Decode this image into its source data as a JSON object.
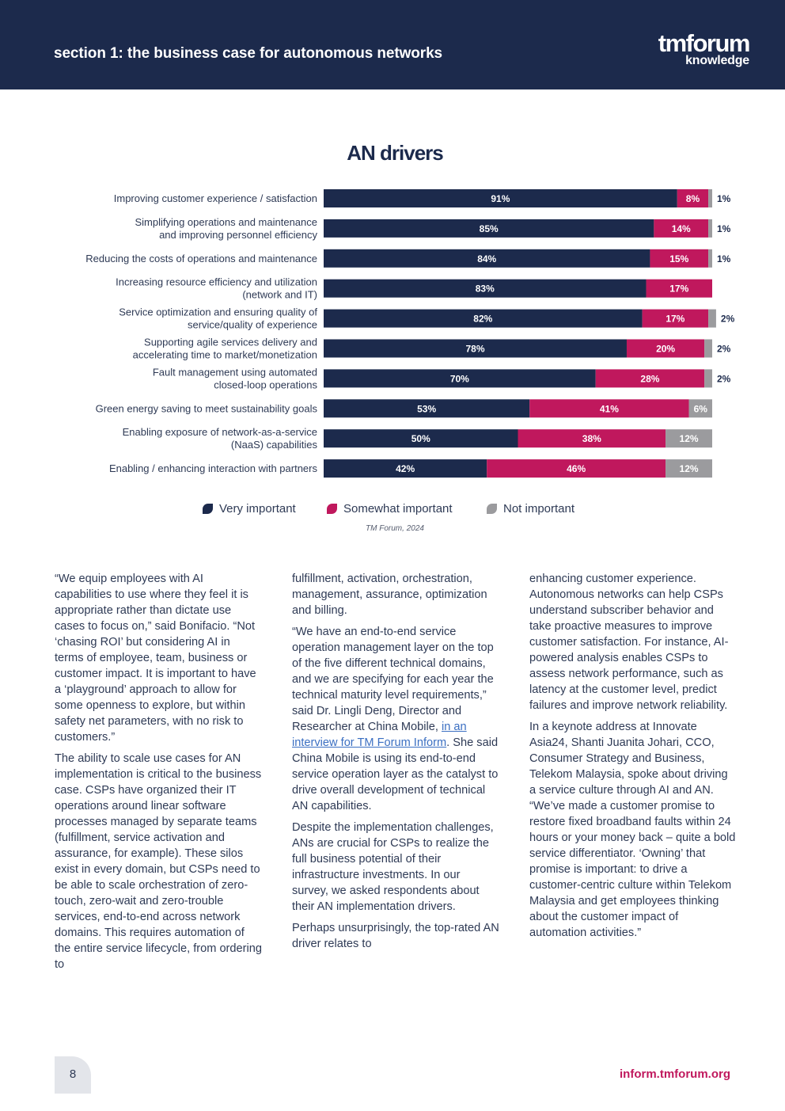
{
  "header": {
    "title": "section 1: the business case for autonomous networks",
    "logo_main": "tmforum",
    "logo_sub": "knowledge"
  },
  "colors": {
    "navy": "#1c2a4c",
    "magenta": "#c0185d",
    "grey": "#9b9b9e"
  },
  "chart_data": {
    "type": "bar",
    "orientation": "horizontal",
    "stacked": true,
    "title": "AN drivers",
    "categories": [
      [
        "Improving customer experience / satisfaction"
      ],
      [
        "Simplifying operations and maintenance",
        "and improving personnel efficiency"
      ],
      [
        "Reducing the costs of operations and maintenance"
      ],
      [
        "Increasing resource efficiency and utilization",
        "(network and IT)"
      ],
      [
        "Service optimization and ensuring quality of",
        "service/quality of experience"
      ],
      [
        "Supporting agile services delivery and",
        "accelerating time to market/monetization"
      ],
      [
        "Fault management using automated",
        "closed-loop operations"
      ],
      [
        "Green energy saving to meet sustainability goals"
      ],
      [
        "Enabling exposure of network-as-a-service",
        "(NaaS) capabilities"
      ],
      [
        "Enabling / enhancing interaction with partners"
      ]
    ],
    "series": [
      {
        "name": "Very important",
        "color": "#1c2a4c",
        "values": [
          91,
          85,
          84,
          83,
          82,
          78,
          70,
          53,
          50,
          42
        ]
      },
      {
        "name": "Somewhat important",
        "color": "#c0185d",
        "values": [
          8,
          14,
          15,
          17,
          17,
          20,
          28,
          41,
          38,
          46
        ]
      },
      {
        "name": "Not important",
        "color": "#9b9b9e",
        "values": [
          1,
          1,
          1,
          0,
          2,
          2,
          2,
          6,
          12,
          12
        ]
      }
    ],
    "value_suffix": "%",
    "xlim": [
      0,
      100
    ],
    "legend_position": "bottom",
    "grid": false
  },
  "source": "TM Forum, 2024",
  "columns": {
    "col1": [
      "“We equip employees with AI capabilities to use where they feel it is appropriate rather than dictate use cases to focus on,” said Bonifacio. “Not ‘chasing ROI’ but considering AI in terms of employee, team, business or customer impact. It is important to have a ‘playground’ approach to allow for some openness to explore, but within safety net parameters, with no risk to customers.”",
      "The ability to scale use cases for AN implementation is critical to the business case. CSPs have organized their IT operations around linear software processes managed by separate teams (fulfillment, service activation and assurance, for example). These silos exist in every domain, but CSPs need to be able to scale orchestration of zero-touch, zero-wait and zero-trouble services, end-to-end across network domains. This requires automation of the entire service lifecycle, from ordering to"
    ],
    "col2_p1": "fulfillment, activation, orchestration, management, assurance, optimization and billing.",
    "col2_p2_before": "“We have an end-to-end service operation management layer on the top of the five different technical domains, and we are specifying for each year the technical maturity level requirements,” said Dr. Lingli Deng, Director and Researcher at China Mobile, ",
    "col2_p2_link": "in an interview for TM Forum Inform",
    "col2_p2_after": ". She said China Mobile is using its end-to-end service operation layer as the catalyst to drive overall development of technical AN capabilities.",
    "col2_p3": "Despite the implementation challenges, ANs are crucial for CSPs to realize the full business potential of their infrastructure investments. In our survey, we asked respondents about their AN implementation drivers.",
    "col2_p4": "Perhaps unsurprisingly, the top-rated AN driver relates to",
    "col3": [
      "enhancing customer experience. Autonomous networks can help CSPs understand subscriber behavior and take proactive measures to improve customer satisfaction. For instance, AI-powered analysis enables CSPs to assess network performance, such as latency at the customer level, predict failures and improve network reliability.",
      "In a keynote address at Innovate Asia24, Shanti Juanita Johari, CCO, Consumer Strategy and Business, Telekom Malaysia, spoke about driving a service culture through AI and AN. “We’ve made a customer promise to restore fixed broadband faults within 24 hours or your money back – quite a bold service differentiator. ‘Owning’ that promise is important: to drive a customer-centric culture within Telekom Malaysia and get employees thinking about the customer impact of automation activities.”"
    ]
  },
  "footer": {
    "page_number": "8",
    "url": "inform.tmforum.org"
  }
}
